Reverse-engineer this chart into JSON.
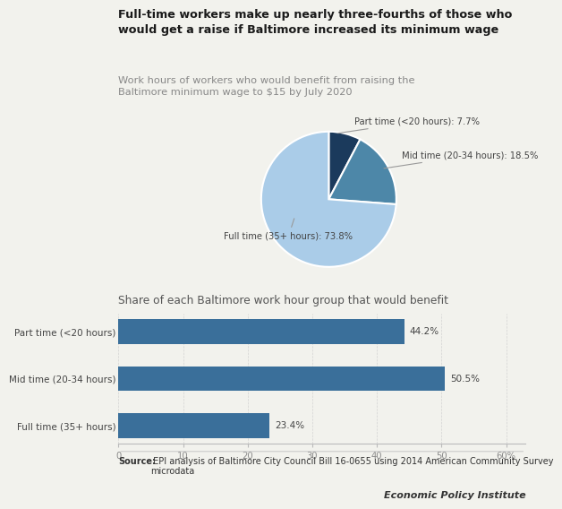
{
  "title_line1": "Full-time workers make up nearly three-fourths of those who",
  "title_line2": "would get a raise if Baltimore increased its minimum wage",
  "subtitle_line1": "Work hours of workers who would benefit from raising the",
  "subtitle_line2": "Baltimore minimum wage to $15 by July 2020",
  "pie_labels": [
    "Part time (<20 hours): 7.7%",
    "Mid time (20-34 hours): 18.5%",
    "Full time (35+ hours): 73.8%"
  ],
  "pie_values": [
    7.7,
    18.5,
    73.8
  ],
  "pie_colors": [
    "#1b3a5c",
    "#4d87a8",
    "#aacce8"
  ],
  "bar_title": "Share of each Baltimore work hour group that would benefit",
  "bar_categories": [
    "Part time (<20 hours)",
    "Mid time (20-34 hours)",
    "Full time (35+ hours)"
  ],
  "bar_values": [
    44.2,
    50.5,
    23.4
  ],
  "bar_color": "#3a6f9a",
  "bar_labels": [
    "44.2%",
    "50.5%",
    "23.4%"
  ],
  "source_bold": "Source:",
  "source_text": " EPI analysis of Baltimore City Council Bill 16-0655 using 2014 American Community Survey\nmicrodata",
  "logo_text": "Economic Policy Institute",
  "bg_color": "#f2f2ed"
}
